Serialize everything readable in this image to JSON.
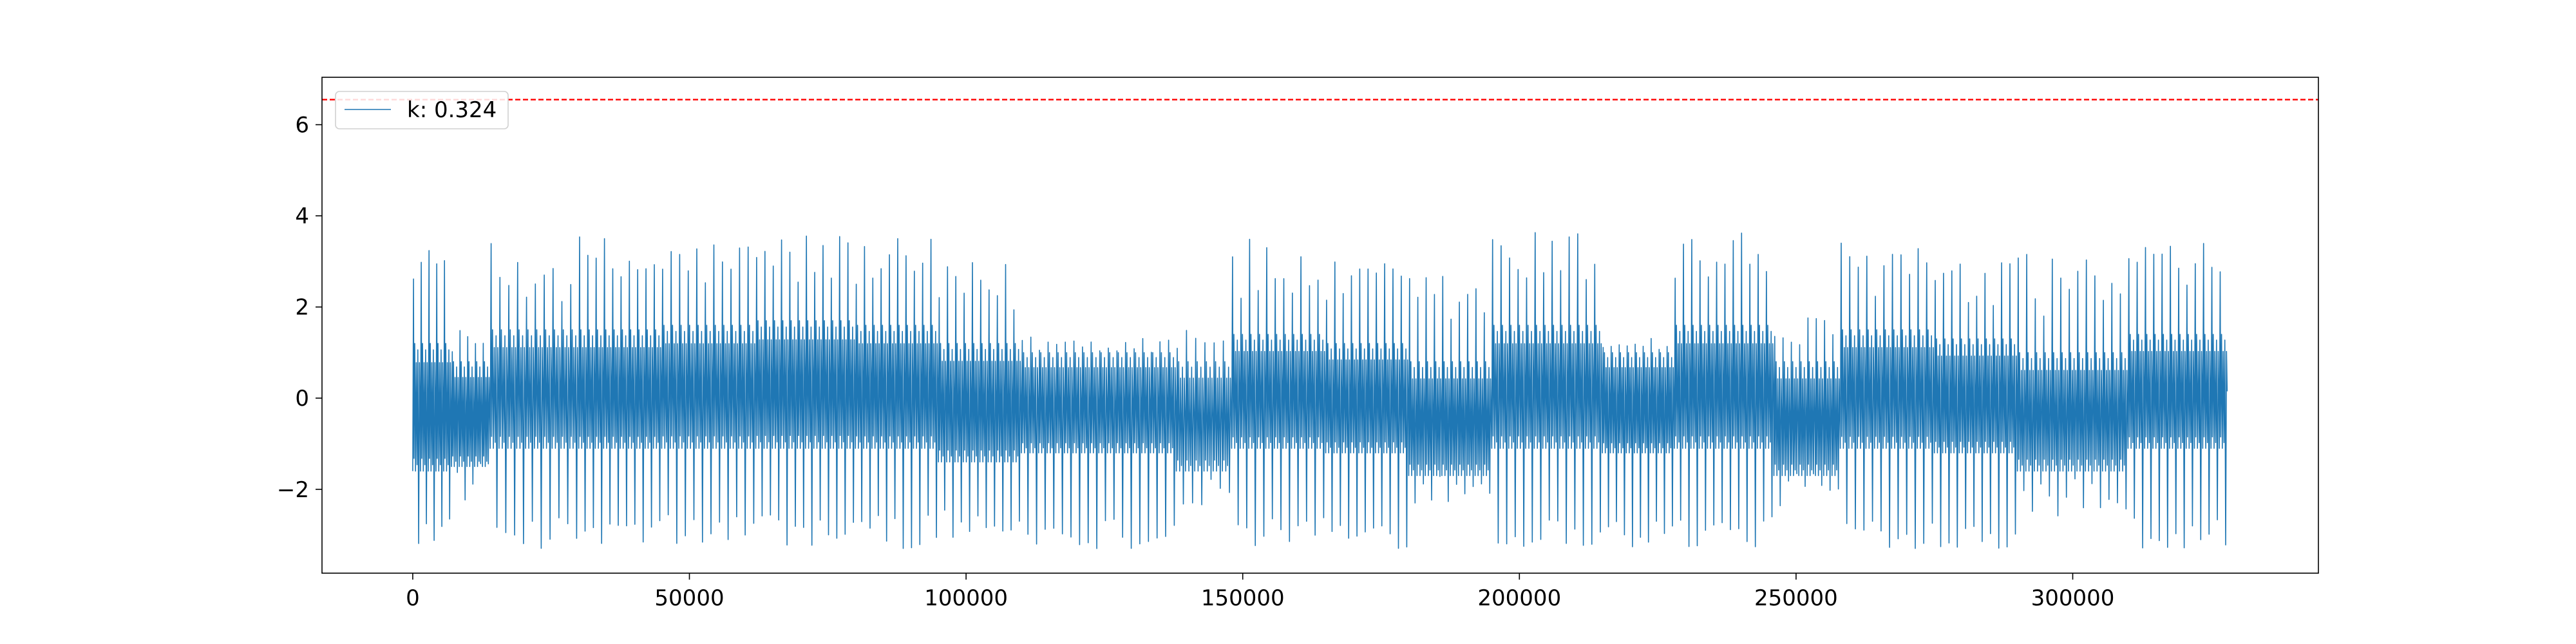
{
  "chart_data": {
    "type": "line",
    "title": "",
    "xlabel": "",
    "ylabel": "",
    "xlim": [
      -16400,
      344400
    ],
    "ylim": [
      -3.84,
      7.04
    ],
    "x_ticks": [
      {
        "value": 0,
        "label": "0"
      },
      {
        "value": 50000,
        "label": "50000"
      },
      {
        "value": 100000,
        "label": "100000"
      },
      {
        "value": 150000,
        "label": "150000"
      },
      {
        "value": 200000,
        "label": "200000"
      },
      {
        "value": 250000,
        "label": "250000"
      },
      {
        "value": 300000,
        "label": "300000"
      }
    ],
    "y_ticks": [
      {
        "value": -2,
        "label": "−2"
      },
      {
        "value": 0,
        "label": "0"
      },
      {
        "value": 2,
        "label": "2"
      },
      {
        "value": 4,
        "label": "4"
      },
      {
        "value": 6,
        "label": "6"
      }
    ],
    "grid": false,
    "legend": {
      "placement": "top-left",
      "entries": [
        "k: 0.324"
      ]
    },
    "threshold": {
      "y": 6.55,
      "color": "#ff0000",
      "style": "dashed"
    },
    "series": [
      {
        "name": "k: 0.324",
        "color": "#1f77b4",
        "x_start": 0,
        "x_end": 328000,
        "segments": [
          {
            "x_start": 0,
            "x_end": 7000,
            "cycles": 5,
            "peak": [
              2.6,
              3.3
            ],
            "trough": [
              -3.2,
              -2.5
            ],
            "core_top": 1.2,
            "core_bottom": -1.6
          },
          {
            "x_start": 7000,
            "x_end": 14000,
            "cycles": 5,
            "peak": [
              1.0,
              1.5
            ],
            "trough": [
              -2.3,
              -1.4
            ],
            "core_top": 0.8,
            "core_bottom": -1.5
          },
          {
            "x_start": 14000,
            "x_end": 30000,
            "cycles": 10,
            "peak": [
              2.1,
              3.4
            ],
            "trough": [
              -3.3,
              -2.6
            ],
            "core_top": 1.5,
            "core_bottom": -1.1
          },
          {
            "x_start": 30000,
            "x_end": 45000,
            "cycles": 10,
            "peak": [
              2.2,
              3.6
            ],
            "trough": [
              -3.3,
              -2.6
            ],
            "core_top": 1.5,
            "core_bottom": -1.1
          },
          {
            "x_start": 45000,
            "x_end": 62000,
            "cycles": 11,
            "peak": [
              2.4,
              3.5
            ],
            "trough": [
              -3.3,
              -2.5
            ],
            "core_top": 1.6,
            "core_bottom": -1.1
          },
          {
            "x_start": 62000,
            "x_end": 80000,
            "cycles": 12,
            "peak": [
              2.4,
              3.7
            ],
            "trough": [
              -3.3,
              -2.5
            ],
            "core_top": 1.7,
            "core_bottom": -1.1
          },
          {
            "x_start": 80000,
            "x_end": 95000,
            "cycles": 10,
            "peak": [
              2.4,
              3.5
            ],
            "trough": [
              -3.3,
              -2.5
            ],
            "core_top": 1.6,
            "core_bottom": -1.1
          },
          {
            "x_start": 95000,
            "x_end": 110000,
            "cycles": 10,
            "peak": [
              1.8,
              3.0
            ],
            "trough": [
              -3.2,
              -2.4
            ],
            "core_top": 1.2,
            "core_bottom": -1.4
          },
          {
            "x_start": 110000,
            "x_end": 138000,
            "cycles": 18,
            "peak": [
              1.0,
              1.4
            ],
            "trough": [
              -3.3,
              -2.6
            ],
            "core_top": 1.0,
            "core_bottom": -1.2
          },
          {
            "x_start": 138000,
            "x_end": 148000,
            "cycles": 6,
            "peak": [
              1.0,
              1.8
            ],
            "trough": [
              -2.4,
              -1.6
            ],
            "core_top": 0.8,
            "core_bottom": -1.6
          },
          {
            "x_start": 148000,
            "x_end": 165000,
            "cycles": 11,
            "peak": [
              2.0,
              3.5
            ],
            "trough": [
              -3.3,
              -2.6
            ],
            "core_top": 1.4,
            "core_bottom": -1.1
          },
          {
            "x_start": 165000,
            "x_end": 180000,
            "cycles": 10,
            "peak": [
              2.0,
              3.0
            ],
            "trough": [
              -3.3,
              -2.6
            ],
            "core_top": 1.2,
            "core_bottom": -1.2
          },
          {
            "x_start": 180000,
            "x_end": 195000,
            "cycles": 10,
            "peak": [
              1.5,
              2.8
            ],
            "trough": [
              -2.4,
              -1.5
            ],
            "core_top": 0.8,
            "core_bottom": -1.7
          },
          {
            "x_start": 195000,
            "x_end": 215000,
            "cycles": 13,
            "peak": [
              2.4,
              3.7
            ],
            "trough": [
              -3.3,
              -2.6
            ],
            "core_top": 1.6,
            "core_bottom": -1.1
          },
          {
            "x_start": 215000,
            "x_end": 228000,
            "cycles": 9,
            "peak": [
              1.0,
              1.4
            ],
            "trough": [
              -3.3,
              -2.6
            ],
            "core_top": 1.0,
            "core_bottom": -1.2
          },
          {
            "x_start": 228000,
            "x_end": 246000,
            "cycles": 12,
            "peak": [
              2.4,
              3.7
            ],
            "trough": [
              -3.3,
              -2.6
            ],
            "core_top": 1.6,
            "core_bottom": -1.1
          },
          {
            "x_start": 246000,
            "x_end": 258000,
            "cycles": 8,
            "peak": [
              1.0,
              1.8
            ],
            "trough": [
              -2.4,
              -1.5
            ],
            "core_top": 0.8,
            "core_bottom": -1.7
          },
          {
            "x_start": 258000,
            "x_end": 275000,
            "cycles": 11,
            "peak": [
              2.2,
              3.6
            ],
            "trough": [
              -3.3,
              -2.6
            ],
            "core_top": 1.5,
            "core_bottom": -1.1
          },
          {
            "x_start": 275000,
            "x_end": 290000,
            "cycles": 10,
            "peak": [
              1.8,
              3.0
            ],
            "trough": [
              -3.3,
              -2.6
            ],
            "core_top": 1.3,
            "core_bottom": -1.2
          },
          {
            "x_start": 290000,
            "x_end": 310000,
            "cycles": 13,
            "peak": [
              1.8,
              3.2
            ],
            "trough": [
              -2.6,
              -1.6
            ],
            "core_top": 1.0,
            "core_bottom": -1.6
          },
          {
            "x_start": 310000,
            "x_end": 328000,
            "cycles": 12,
            "peak": [
              2.2,
              3.4
            ],
            "trough": [
              -3.3,
              -2.6
            ],
            "core_top": 1.4,
            "core_bottom": -1.1
          }
        ]
      }
    ]
  }
}
